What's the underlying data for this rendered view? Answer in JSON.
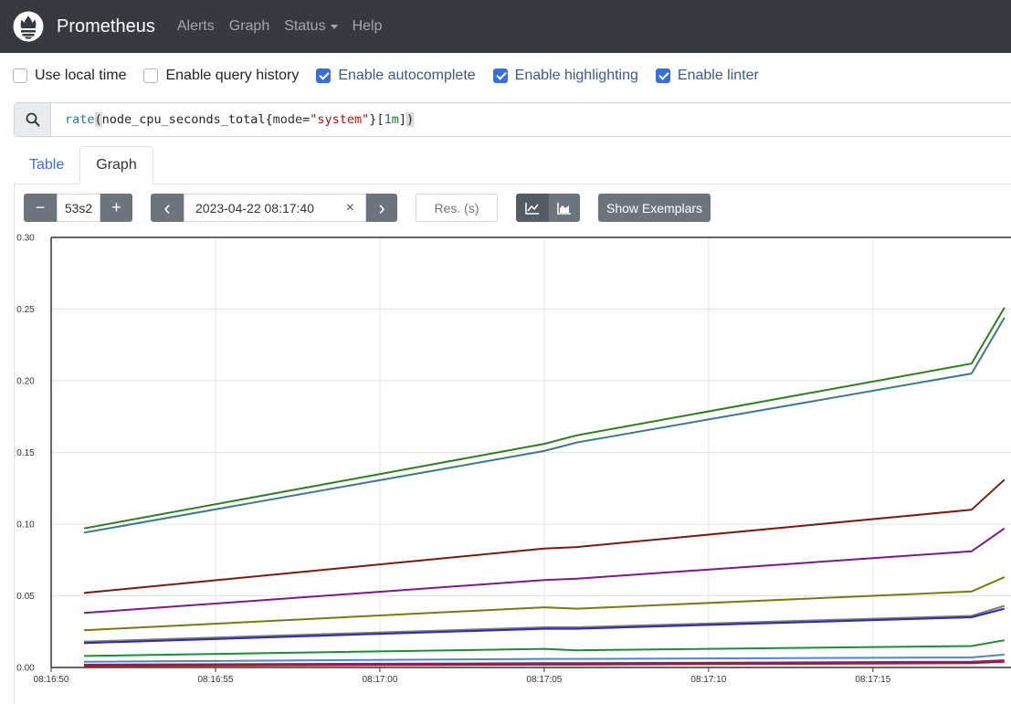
{
  "navbar": {
    "brand": "Prometheus",
    "links": [
      "Alerts",
      "Graph",
      "Status",
      "Help"
    ]
  },
  "options": [
    {
      "label": "Use local time",
      "checked": false
    },
    {
      "label": "Enable query history",
      "checked": false
    },
    {
      "label": "Enable autocomplete",
      "checked": true
    },
    {
      "label": "Enable highlighting",
      "checked": true
    },
    {
      "label": "Enable linter",
      "checked": true
    }
  ],
  "expression": {
    "fn": "rate",
    "open_paren": "(",
    "metric": "node_cpu_seconds_total",
    "brace_open": "{",
    "label_name": "mode",
    "eq": "=",
    "label_value": "\"system\"",
    "brace_close": "}",
    "range_open": "[",
    "duration": "1m",
    "range_close": "]",
    "close_paren": ")"
  },
  "tabs": {
    "table": "Table",
    "graph": "Graph"
  },
  "controls": {
    "minus": "−",
    "range": "53s2",
    "plus": "+",
    "prev": "‹",
    "end_time": "2023-04-22 08:17:40",
    "clear": "×",
    "next": "›",
    "resolution_placeholder": "Res. (s)",
    "exemplars": "Show Exemplars",
    "line_chart_icon": "line-chart-icon",
    "stacked_chart_icon": "area-chart-icon"
  },
  "chart_data": {
    "type": "line",
    "ylim": [
      0,
      0.3
    ],
    "yticks": [
      "0.00",
      "0.05",
      "0.10",
      "0.15",
      "0.20",
      "0.25",
      "0.30"
    ],
    "xticks": [
      "08:16:50",
      "08:16:55",
      "08:17:00",
      "08:17:05",
      "08:17:10",
      "08:17:15"
    ],
    "x": [
      "08:16:51",
      "08:17:05",
      "08:17:06",
      "08:17:18",
      "08:17:19"
    ],
    "grid": true,
    "series": [
      {
        "color": "#2f7d1d",
        "values": [
          0.097,
          0.156,
          0.162,
          0.212,
          0.251
        ]
      },
      {
        "color": "#3b7a8c",
        "values": [
          0.094,
          0.151,
          0.157,
          0.205,
          0.244
        ]
      },
      {
        "color": "#7a1a10",
        "values": [
          0.052,
          0.083,
          0.084,
          0.11,
          0.131
        ]
      },
      {
        "color": "#7d1a8a",
        "values": [
          0.038,
          0.061,
          0.062,
          0.081,
          0.097
        ]
      },
      {
        "color": "#7a7a10",
        "values": [
          0.026,
          0.042,
          0.041,
          0.053,
          0.063
        ]
      },
      {
        "color": "#7a7a7a",
        "values": [
          0.018,
          0.028,
          0.028,
          0.036,
          0.043
        ]
      },
      {
        "color": "#2a2ac0",
        "values": [
          0.017,
          0.027,
          0.027,
          0.035,
          0.041
        ]
      },
      {
        "color": "#1f8a3a",
        "values": [
          0.008,
          0.013,
          0.012,
          0.015,
          0.019
        ]
      },
      {
        "color": "#4a86d8",
        "values": [
          0.004,
          0.006,
          0.006,
          0.007,
          0.009
        ]
      },
      {
        "color": "#8a1a8a",
        "values": [
          0.002,
          0.003,
          0.003,
          0.004,
          0.005
        ]
      },
      {
        "color": "#a02020",
        "values": [
          0.001,
          0.002,
          0.002,
          0.003,
          0.004
        ]
      }
    ]
  }
}
